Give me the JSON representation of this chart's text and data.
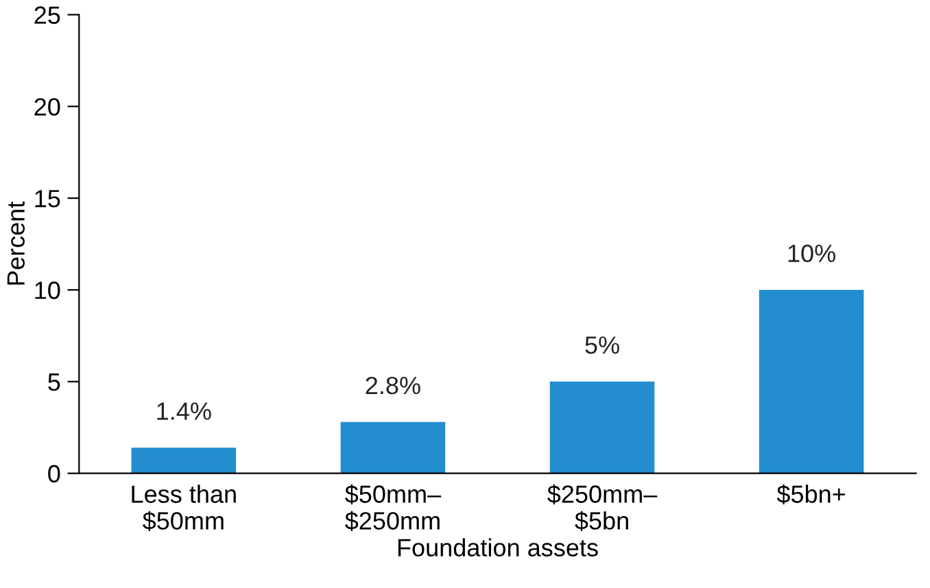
{
  "chart_data": {
    "type": "bar",
    "xlabel": "Foundation assets",
    "ylabel": "Percent",
    "categories": [
      "Less than\n$50mm",
      "$50mm–\n$250mm",
      "$250mm–\n$5bn",
      "$5bn+"
    ],
    "values": [
      1.4,
      2.8,
      5,
      10
    ],
    "value_labels": [
      "1.4%",
      "2.8%",
      "5%",
      "10%"
    ],
    "color": "#238dd0",
    "ylim": [
      0,
      25
    ],
    "yticks": [
      0,
      5,
      10,
      15,
      20,
      25
    ],
    "grid": false
  }
}
